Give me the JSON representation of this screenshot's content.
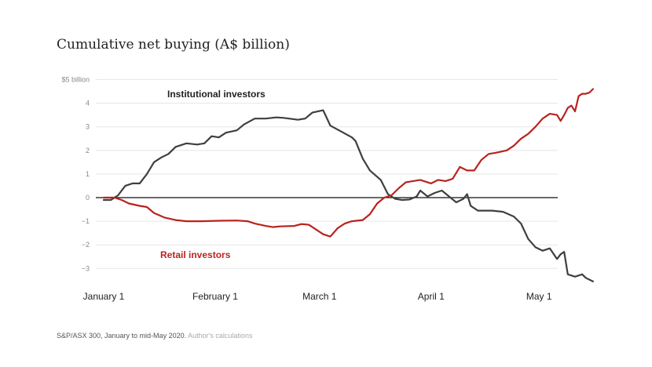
{
  "title": "Cumulative net buying (A$ billion)",
  "footer": {
    "source": "S&P/ASX 300, January to mid-May 2020.",
    "note": "Author's calculations"
  },
  "colors": {
    "institutional": "#3f3f3f",
    "retail": "#b9231f",
    "grid": "#e6e6e6",
    "zero": "#111111"
  },
  "chart_data": {
    "type": "line",
    "title": "Cumulative net buying (A$ billion)",
    "ylim": [
      -3.6,
      5
    ],
    "yticks": [
      {
        "value": 5,
        "label": "$5 billion"
      },
      {
        "value": 4,
        "label": "4"
      },
      {
        "value": 3,
        "label": "3"
      },
      {
        "value": 2,
        "label": "2"
      },
      {
        "value": 1,
        "label": "1"
      },
      {
        "value": 0,
        "label": "0"
      },
      {
        "value": -1,
        "label": "−1"
      },
      {
        "value": -2,
        "label": "−2"
      },
      {
        "value": -3,
        "label": "−3"
      }
    ],
    "xlim": [
      "2020-01-01",
      "2020-05-14"
    ],
    "xticks": [
      {
        "date": "2020-01-01",
        "label": "January 1"
      },
      {
        "date": "2020-02-01",
        "label": "February 1"
      },
      {
        "date": "2020-03-01",
        "label": "March 1"
      },
      {
        "date": "2020-04-01",
        "label": "April 1"
      },
      {
        "date": "2020-05-01",
        "label": "May 1"
      }
    ],
    "series": [
      {
        "name": "Institutional investors",
        "color": "#3f3f3f",
        "points": [
          [
            "2020-01-01",
            -0.1
          ],
          [
            "2020-01-03",
            -0.1
          ],
          [
            "2020-01-05",
            0.1
          ],
          [
            "2020-01-07",
            0.5
          ],
          [
            "2020-01-09",
            0.6
          ],
          [
            "2020-01-11",
            0.6
          ],
          [
            "2020-01-13",
            1.0
          ],
          [
            "2020-01-15",
            1.5
          ],
          [
            "2020-01-17",
            1.7
          ],
          [
            "2020-01-19",
            1.85
          ],
          [
            "2020-01-21",
            2.15
          ],
          [
            "2020-01-24",
            2.3
          ],
          [
            "2020-01-27",
            2.25
          ],
          [
            "2020-01-29",
            2.3
          ],
          [
            "2020-01-31",
            2.6
          ],
          [
            "2020-02-02",
            2.55
          ],
          [
            "2020-02-04",
            2.75
          ],
          [
            "2020-02-07",
            2.85
          ],
          [
            "2020-02-09",
            3.1
          ],
          [
            "2020-02-12",
            3.35
          ],
          [
            "2020-02-15",
            3.35
          ],
          [
            "2020-02-18",
            3.4
          ],
          [
            "2020-02-20",
            3.38
          ],
          [
            "2020-02-24",
            3.3
          ],
          [
            "2020-02-26",
            3.35
          ],
          [
            "2020-02-28",
            3.6
          ],
          [
            "2020-03-02",
            3.7
          ],
          [
            "2020-03-04",
            3.05
          ],
          [
            "2020-03-07",
            2.8
          ],
          [
            "2020-03-10",
            2.55
          ],
          [
            "2020-03-11",
            2.4
          ],
          [
            "2020-03-13",
            1.65
          ],
          [
            "2020-03-15",
            1.15
          ],
          [
            "2020-03-18",
            0.75
          ],
          [
            "2020-03-20",
            0.15
          ],
          [
            "2020-03-22",
            -0.05
          ],
          [
            "2020-03-24",
            -0.1
          ],
          [
            "2020-03-26",
            -0.08
          ],
          [
            "2020-03-28",
            0.05
          ],
          [
            "2020-03-29",
            0.3
          ],
          [
            "2020-03-31",
            0.05
          ],
          [
            "2020-04-02",
            0.2
          ],
          [
            "2020-04-04",
            0.3
          ],
          [
            "2020-04-08",
            -0.2
          ],
          [
            "2020-04-10",
            -0.05
          ],
          [
            "2020-04-11",
            0.15
          ],
          [
            "2020-04-12",
            -0.35
          ],
          [
            "2020-04-14",
            -0.55
          ],
          [
            "2020-04-18",
            -0.55
          ],
          [
            "2020-04-21",
            -0.6
          ],
          [
            "2020-04-24",
            -0.8
          ],
          [
            "2020-04-26",
            -1.1
          ],
          [
            "2020-04-28",
            -1.75
          ],
          [
            "2020-04-30",
            -2.1
          ],
          [
            "2020-05-02",
            -2.25
          ],
          [
            "2020-05-04",
            -2.15
          ],
          [
            "2020-05-06",
            -2.6
          ],
          [
            "2020-05-07",
            -2.4
          ],
          [
            "2020-05-08",
            -2.3
          ],
          [
            "2020-05-09",
            -3.25
          ],
          [
            "2020-05-11",
            -3.35
          ],
          [
            "2020-05-12",
            -3.3
          ],
          [
            "2020-05-13",
            -3.25
          ],
          [
            "2020-05-14",
            -3.4
          ],
          [
            "2020-05-16",
            -3.55
          ]
        ]
      },
      {
        "name": "Retail investors",
        "color": "#b9231f",
        "points": [
          [
            "2020-01-01",
            0.0
          ],
          [
            "2020-01-04",
            0.0
          ],
          [
            "2020-01-06",
            -0.1
          ],
          [
            "2020-01-08",
            -0.25
          ],
          [
            "2020-01-11",
            -0.35
          ],
          [
            "2020-01-13",
            -0.4
          ],
          [
            "2020-01-15",
            -0.65
          ],
          [
            "2020-01-18",
            -0.85
          ],
          [
            "2020-01-21",
            -0.95
          ],
          [
            "2020-01-24",
            -1.0
          ],
          [
            "2020-01-28",
            -1.0
          ],
          [
            "2020-02-02",
            -0.98
          ],
          [
            "2020-02-07",
            -0.97
          ],
          [
            "2020-02-10",
            -1.0
          ],
          [
            "2020-02-12",
            -1.1
          ],
          [
            "2020-02-15",
            -1.2
          ],
          [
            "2020-02-17",
            -1.25
          ],
          [
            "2020-02-19",
            -1.22
          ],
          [
            "2020-02-23",
            -1.2
          ],
          [
            "2020-02-25",
            -1.12
          ],
          [
            "2020-02-27",
            -1.15
          ],
          [
            "2020-02-29",
            -1.35
          ],
          [
            "2020-03-02",
            -1.55
          ],
          [
            "2020-03-04",
            -1.65
          ],
          [
            "2020-03-06",
            -1.3
          ],
          [
            "2020-03-08",
            -1.1
          ],
          [
            "2020-03-10",
            -1.0
          ],
          [
            "2020-03-13",
            -0.95
          ],
          [
            "2020-03-15",
            -0.7
          ],
          [
            "2020-03-17",
            -0.25
          ],
          [
            "2020-03-19",
            0.0
          ],
          [
            "2020-03-21",
            0.1
          ],
          [
            "2020-03-23",
            0.4
          ],
          [
            "2020-03-25",
            0.65
          ],
          [
            "2020-03-27",
            0.7
          ],
          [
            "2020-03-29",
            0.75
          ],
          [
            "2020-04-01",
            0.6
          ],
          [
            "2020-04-03",
            0.75
          ],
          [
            "2020-04-05",
            0.7
          ],
          [
            "2020-04-07",
            0.8
          ],
          [
            "2020-04-09",
            1.3
          ],
          [
            "2020-04-11",
            1.15
          ],
          [
            "2020-04-13",
            1.15
          ],
          [
            "2020-04-15",
            1.6
          ],
          [
            "2020-04-17",
            1.85
          ],
          [
            "2020-04-19",
            1.9
          ],
          [
            "2020-04-22",
            2.0
          ],
          [
            "2020-04-24",
            2.2
          ],
          [
            "2020-04-26",
            2.5
          ],
          [
            "2020-04-28",
            2.7
          ],
          [
            "2020-04-30",
            3.0
          ],
          [
            "2020-05-02",
            3.35
          ],
          [
            "2020-05-04",
            3.55
          ],
          [
            "2020-05-06",
            3.5
          ],
          [
            "2020-05-07",
            3.25
          ],
          [
            "2020-05-08",
            3.5
          ],
          [
            "2020-05-09",
            3.8
          ],
          [
            "2020-05-10",
            3.9
          ],
          [
            "2020-05-11",
            3.65
          ],
          [
            "2020-05-12",
            4.3
          ],
          [
            "2020-05-13",
            4.4
          ],
          [
            "2020-05-14",
            4.4
          ],
          [
            "2020-05-15",
            4.45
          ],
          [
            "2020-05-16",
            4.6
          ]
        ]
      }
    ],
    "annotations": [
      {
        "text": "Institutional investors",
        "series": 0
      },
      {
        "text": "Retail investors",
        "series": 1
      }
    ]
  }
}
